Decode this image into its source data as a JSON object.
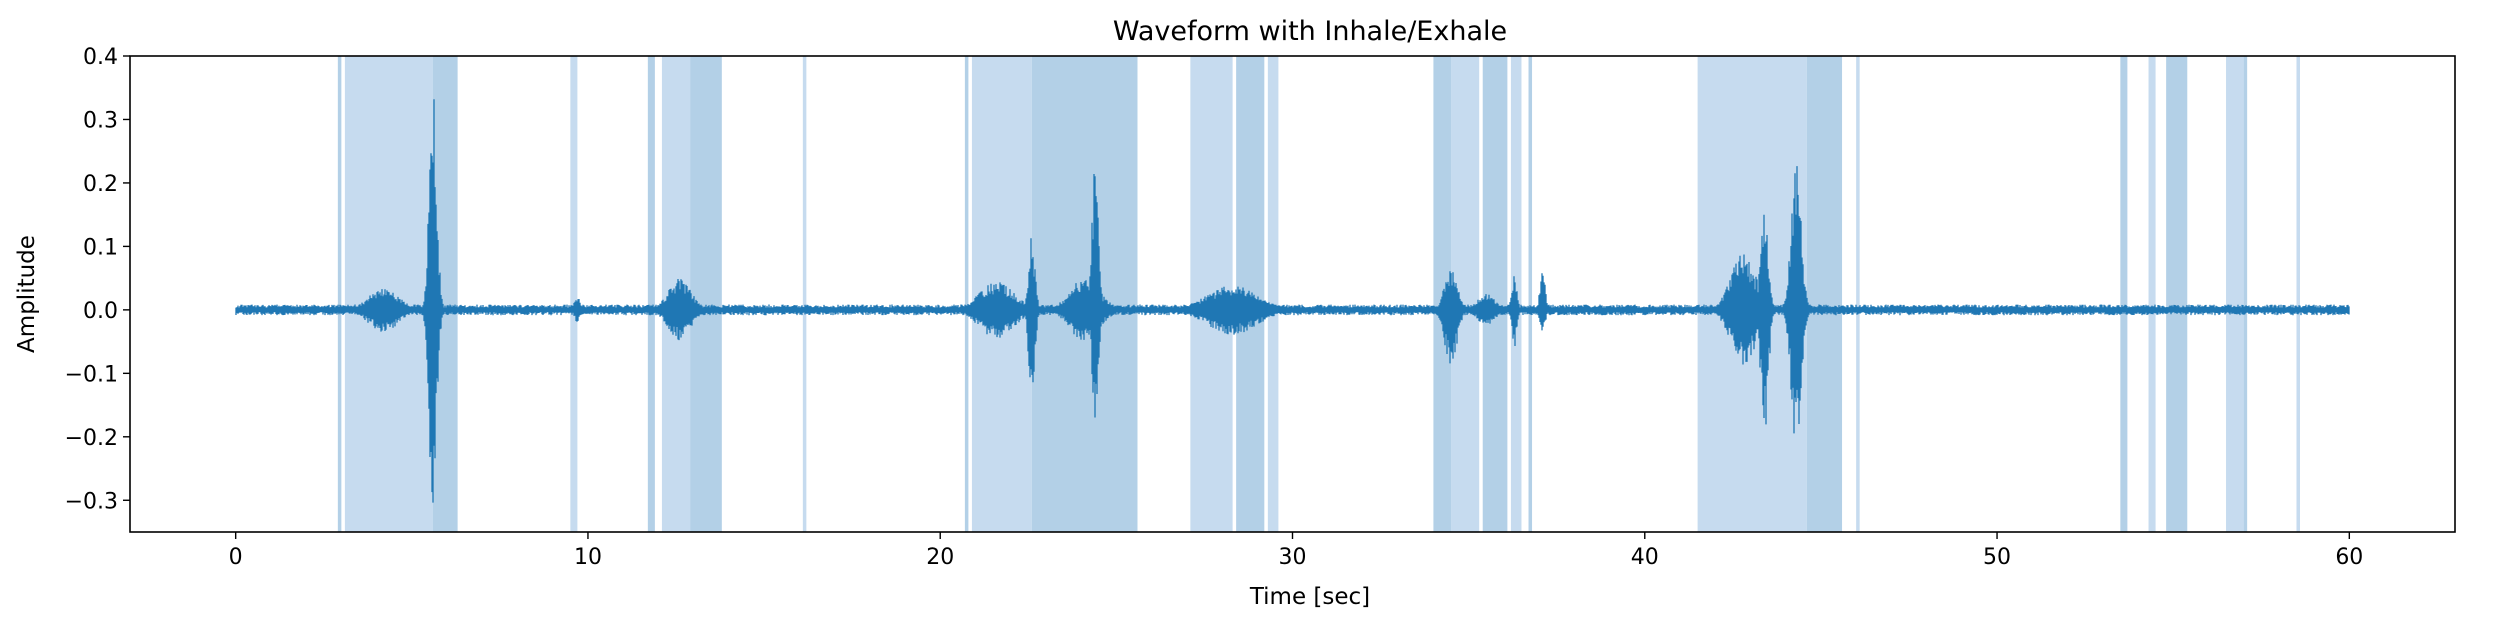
{
  "chart_data": {
    "type": "line",
    "title": "Waveform with Inhale/Exhale",
    "xlabel": "Time [sec]",
    "ylabel": "Amplitude",
    "xlim": [
      -3,
      63
    ],
    "ylim": [
      -0.35,
      0.4
    ],
    "x_ticks": [
      0,
      10,
      20,
      30,
      40,
      50,
      60
    ],
    "x_tick_labels": [
      "0",
      "10",
      "20",
      "30",
      "40",
      "50",
      "60"
    ],
    "y_ticks": [
      -0.3,
      -0.2,
      -0.1,
      0.0,
      0.1,
      0.2,
      0.3,
      0.4
    ],
    "y_tick_labels": [
      "−0.3",
      "−0.2",
      "−0.1",
      "0.0",
      "0.1",
      "0.2",
      "0.3",
      "0.4"
    ],
    "grid": false,
    "legend": "none",
    "colors": {
      "waveform": "#1f77b4",
      "inhale": "#b3d0e7",
      "exhale": "#c6dbef"
    },
    "series": [
      {
        "kind": "waveform",
        "x_range": [
          0,
          60
        ],
        "baseline_amplitude": 0.006,
        "bursts": [
          {
            "center": 4.2,
            "width": 1.2,
            "amplitude": 0.035
          },
          {
            "center": 5.6,
            "width": 0.3,
            "min": -0.32,
            "max": 0.36
          },
          {
            "center": 9.7,
            "width": 0.25,
            "amplitude": 0.02
          },
          {
            "center": 12.6,
            "width": 0.9,
            "amplitude": 0.05
          },
          {
            "center": 21.6,
            "width": 1.4,
            "amplitude": 0.045
          },
          {
            "center": 22.6,
            "width": 0.25,
            "min": -0.14,
            "max": 0.12
          },
          {
            "center": 24.1,
            "width": 1.2,
            "amplitude": 0.05
          },
          {
            "center": 24.4,
            "width": 0.25,
            "min": -0.18,
            "max": 0.26
          },
          {
            "center": 28.3,
            "width": 2.0,
            "amplitude": 0.04
          },
          {
            "center": 34.5,
            "width": 0.5,
            "min": -0.09,
            "max": 0.07
          },
          {
            "center": 35.5,
            "width": 0.7,
            "amplitude": 0.025
          },
          {
            "center": 36.3,
            "width": 0.2,
            "min": -0.06,
            "max": 0.06
          },
          {
            "center": 37.1,
            "width": 0.2,
            "min": -0.04,
            "max": 0.07
          },
          {
            "center": 42.8,
            "width": 1.0,
            "amplitude": 0.09
          },
          {
            "center": 43.4,
            "width": 0.3,
            "min": -0.2,
            "max": 0.17
          },
          {
            "center": 44.3,
            "width": 0.4,
            "min": -0.23,
            "max": 0.24
          }
        ]
      }
    ],
    "shaded_regions": [
      {
        "start": 2.9,
        "end": 3.0
      },
      {
        "start": 3.1,
        "end": 5.6
      },
      {
        "start": 5.6,
        "end": 6.3
      },
      {
        "start": 9.5,
        "end": 9.7
      },
      {
        "start": 11.7,
        "end": 11.9
      },
      {
        "start": 12.1,
        "end": 12.9
      },
      {
        "start": 12.9,
        "end": 13.8
      },
      {
        "start": 16.1,
        "end": 16.2
      },
      {
        "start": 20.7,
        "end": 20.8
      },
      {
        "start": 20.9,
        "end": 22.6
      },
      {
        "start": 22.6,
        "end": 25.6
      },
      {
        "start": 27.1,
        "end": 28.3
      },
      {
        "start": 28.4,
        "end": 29.2
      },
      {
        "start": 29.3,
        "end": 29.6
      },
      {
        "start": 34.0,
        "end": 34.5
      },
      {
        "start": 34.5,
        "end": 35.3
      },
      {
        "start": 35.4,
        "end": 36.1
      },
      {
        "start": 36.2,
        "end": 36.5
      },
      {
        "start": 36.7,
        "end": 36.8
      },
      {
        "start": 41.5,
        "end": 44.6
      },
      {
        "start": 44.6,
        "end": 45.6
      },
      {
        "start": 46.0,
        "end": 46.1
      },
      {
        "start": 53.5,
        "end": 53.7
      },
      {
        "start": 54.3,
        "end": 54.5
      },
      {
        "start": 54.8,
        "end": 55.4
      },
      {
        "start": 56.5,
        "end": 57.0
      },
      {
        "start": 57.0,
        "end": 57.1
      },
      {
        "start": 58.5,
        "end": 58.6
      }
    ]
  }
}
